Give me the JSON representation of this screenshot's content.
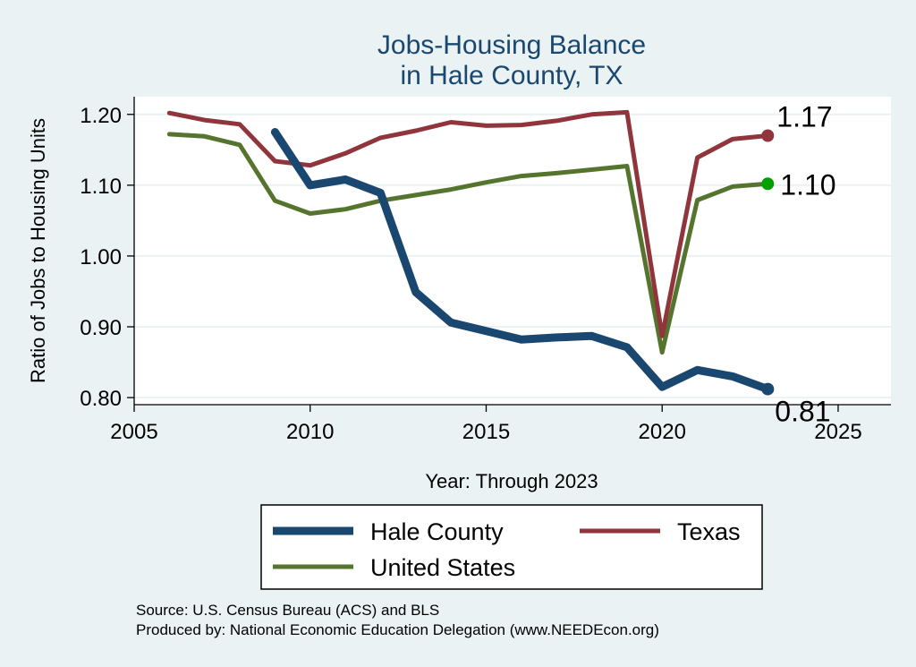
{
  "chart_data": {
    "type": "line",
    "title": "Jobs-Housing Balance",
    "subtitle": "in Hale County, TX",
    "xlabel": "Year: Through 2023",
    "ylabel": "Ratio of Jobs to Housing Units",
    "xlim": [
      2005,
      2026.5
    ],
    "ylim": [
      0.79,
      1.225
    ],
    "xticks": [
      2005,
      2010,
      2015,
      2020,
      2025
    ],
    "yticks": [
      0.8,
      0.9,
      1.0,
      1.1,
      1.2
    ],
    "ytick_labels": [
      "0.80",
      "0.90",
      "1.00",
      "1.10",
      "1.20"
    ],
    "grid": true,
    "legend_position": "bottom",
    "series": [
      {
        "name": "Hale County",
        "color": "#1a476f",
        "x": [
          2009,
          2010,
          2011,
          2012,
          2013,
          2014,
          2015,
          2016,
          2017,
          2018,
          2019,
          2020,
          2021,
          2022,
          2023
        ],
        "values": [
          1.175,
          1.1,
          1.108,
          1.089,
          0.949,
          0.906,
          0.894,
          0.882,
          0.885,
          0.887,
          0.871,
          0.815,
          0.839,
          0.83,
          0.812
        ],
        "end_label": "0.81",
        "line_width": 9
      },
      {
        "name": "Texas",
        "color": "#90353b",
        "x": [
          2006,
          2007,
          2008,
          2009,
          2010,
          2011,
          2012,
          2013,
          2014,
          2015,
          2016,
          2017,
          2018,
          2019,
          2020,
          2021,
          2022,
          2023
        ],
        "values": [
          1.202,
          1.192,
          1.186,
          1.134,
          1.128,
          1.145,
          1.167,
          1.177,
          1.189,
          1.184,
          1.185,
          1.191,
          1.2,
          1.203,
          0.887,
          1.139,
          1.165,
          1.17
        ],
        "end_label": "1.17",
        "line_width": 5
      },
      {
        "name": "United States",
        "color": "#55752f",
        "x": [
          2006,
          2007,
          2008,
          2009,
          2010,
          2011,
          2012,
          2013,
          2014,
          2015,
          2016,
          2017,
          2018,
          2019,
          2020,
          2021,
          2022,
          2023
        ],
        "values": [
          1.172,
          1.169,
          1.157,
          1.078,
          1.06,
          1.066,
          1.078,
          1.086,
          1.094,
          1.104,
          1.113,
          1.117,
          1.122,
          1.127,
          0.864,
          1.079,
          1.098,
          1.102
        ],
        "end_label": "1.10",
        "marker_color": "#00a000",
        "line_width": 5
      }
    ],
    "legend_layout": [
      [
        "Hale County",
        "Texas"
      ],
      [
        "United States"
      ]
    ]
  },
  "footer": {
    "source": "Source: U.S. Census Bureau (ACS) and BLS",
    "produced_by": "Produced by: National Economic Education Delegation (www.NEEDEcon.org)"
  }
}
